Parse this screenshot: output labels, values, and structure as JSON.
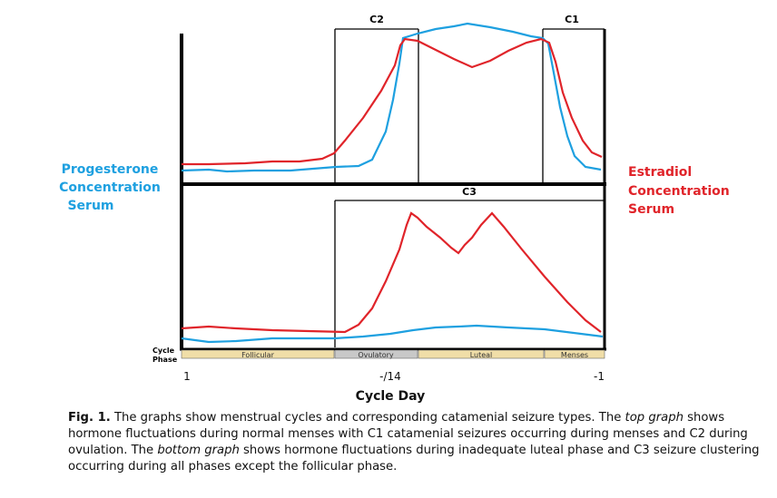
{
  "figure": {
    "left_label": [
      "Progesterone",
      "Concentration",
      "Serum"
    ],
    "right_label": [
      "Estradiol",
      "Concentration",
      "Serum"
    ],
    "phase_axis_label": [
      "Cycle",
      "Phase"
    ],
    "phases": [
      "Follicular",
      "Ovulatory",
      "Luteal",
      "Menses"
    ],
    "xticks": [
      "1",
      "-/14",
      "-1"
    ],
    "xlabel": "Cycle Day",
    "seizure_windows": [
      "C2",
      "C1",
      "C3"
    ],
    "colors": {
      "progesterone": "#1ea0e0",
      "estradiol": "#e0242a",
      "phase_fill": "#f0dea8",
      "phase_ovulatory": "#c8c8c8"
    }
  },
  "caption": {
    "label": "Fig. 1.",
    "t1": " The graphs show menstrual cycles and corresponding catamenial seizure types. The ",
    "em1": "top graph",
    "t2": " shows hormone fluctuations during normal menses with C1 catamenial seizures occurring during menses and C2 during ovulation. The ",
    "em2": "bottom graph",
    "t3": " shows hormone fluctuations during inadequate luteal phase and C3 seizure clustering occurring during all phases except the follicular phase."
  }
}
